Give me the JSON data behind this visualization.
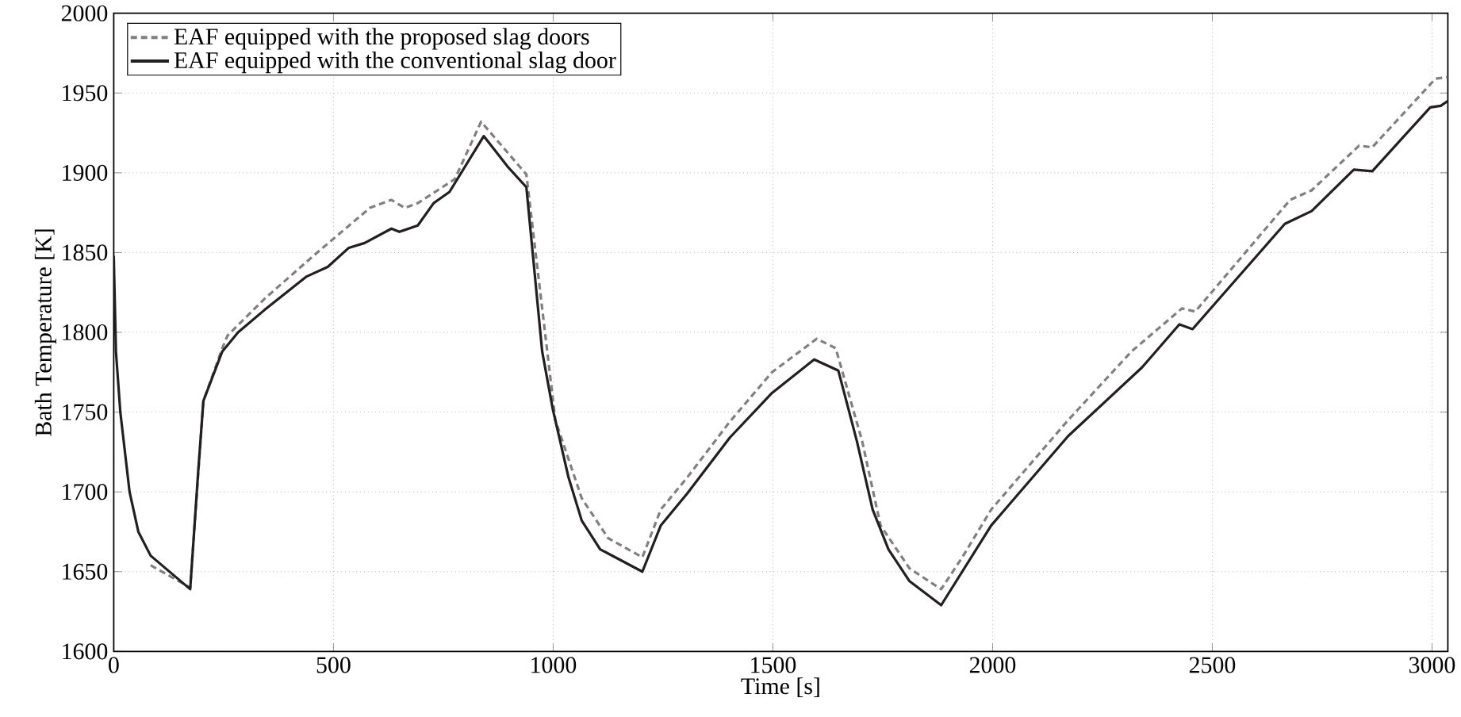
{
  "chart_data": {
    "type": "line",
    "xlabel": "Time [s]",
    "ylabel": "Bath Temperature [K]",
    "xlim": [
      0,
      3036
    ],
    "ylim": [
      1600,
      2000
    ],
    "xticks": [
      0,
      500,
      1000,
      1500,
      2000,
      2500,
      3000
    ],
    "yticks": [
      1600,
      1650,
      1700,
      1750,
      1800,
      1850,
      1900,
      1950,
      2000
    ],
    "grid": true,
    "legend": "top left",
    "marker": "none",
    "series": [
      {
        "name": "EAF equipped with the proposed slag doors",
        "color": "#808080",
        "line_style": "dashed",
        "x": [
          84,
          174,
          204,
          247,
          259,
          343,
          463,
          583,
          632,
          662,
          692,
          776,
          836,
          939,
          1005,
          1065,
          1125,
          1203,
          1245,
          1305,
          1402,
          1498,
          1600,
          1643,
          1703,
          1745,
          1811,
          1883,
          1931,
          1997,
          2172,
          2316,
          2431,
          2461,
          2677,
          2726,
          2834,
          2864,
          3008,
          3036
        ],
        "values": [
          1654,
          1640,
          1757,
          1790,
          1798,
          1821,
          1850,
          1878,
          1883,
          1878,
          1881,
          1896,
          1932,
          1899,
          1745,
          1696,
          1671,
          1659,
          1689,
          1709,
          1744,
          1775,
          1796,
          1790,
          1732,
          1679,
          1652,
          1639,
          1659,
          1689,
          1745,
          1788,
          1815,
          1813,
          1883,
          1889,
          1917,
          1916,
          1959,
          1960
        ]
      },
      {
        "name": "EAF equipped with the conventional slag door",
        "color": "#231f20",
        "line_style": "solid",
        "x": [
          0,
          5,
          15,
          36,
          56,
          84,
          174,
          192,
          204,
          247,
          283,
          343,
          439,
          487,
          535,
          571,
          632,
          650,
          692,
          728,
          764,
          842,
          896,
          939,
          975,
          999,
          1035,
          1065,
          1107,
          1203,
          1245,
          1305,
          1402,
          1498,
          1594,
          1649,
          1691,
          1727,
          1763,
          1811,
          1883,
          1997,
          2172,
          2340,
          2425,
          2455,
          2665,
          2726,
          2822,
          2864,
          2996,
          3020,
          3036
        ],
        "values": [
          1848,
          1788,
          1750,
          1700,
          1675,
          1660,
          1639,
          1712,
          1757,
          1788,
          1800,
          1814,
          1835,
          1841,
          1853,
          1856,
          1865,
          1863,
          1867,
          1881,
          1888,
          1923,
          1904,
          1891,
          1788,
          1752,
          1709,
          1682,
          1664,
          1650,
          1679,
          1699,
          1734,
          1762,
          1783,
          1776,
          1732,
          1689,
          1664,
          1644,
          1629,
          1679,
          1735,
          1778,
          1805,
          1802,
          1868,
          1876,
          1902,
          1901,
          1941,
          1942,
          1945
        ]
      }
    ]
  }
}
